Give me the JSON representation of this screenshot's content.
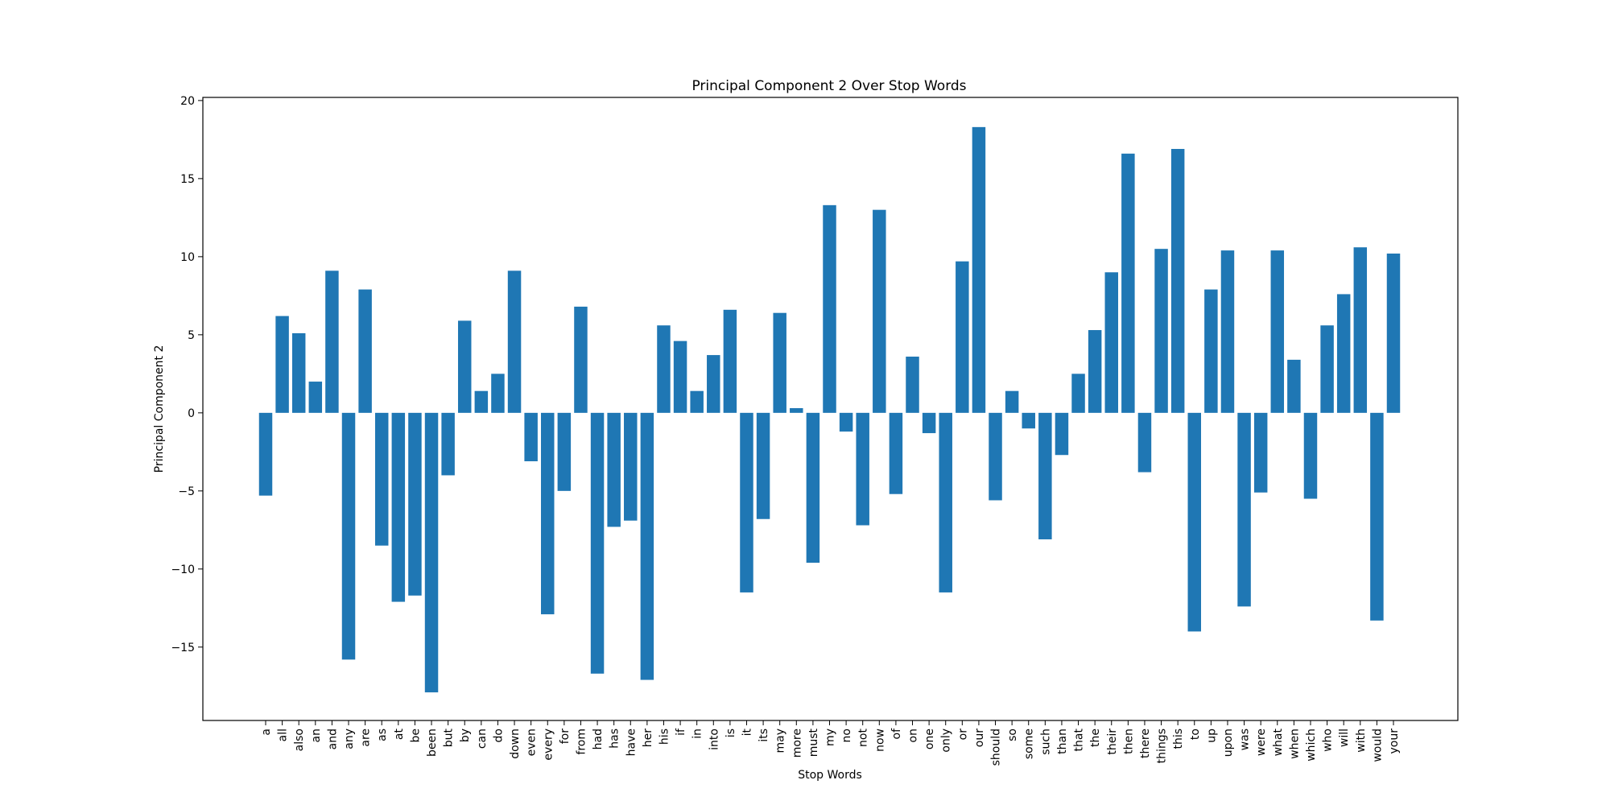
{
  "chart_data": {
    "type": "bar",
    "title": "Principal Component 2 Over Stop Words",
    "xlabel": "Stop Words",
    "ylabel": "Principal Component 2",
    "ylim": [
      -19.7,
      20.2
    ],
    "yticks": [
      -15,
      -10,
      -5,
      0,
      5,
      10,
      15,
      20
    ],
    "ytick_labels": [
      "−15",
      "−10",
      "−5",
      "0",
      "5",
      "10",
      "15",
      "20"
    ],
    "grid": false,
    "bar_color": "#1f77b4",
    "categories": [
      "a",
      "all",
      "also",
      "an",
      "and",
      "any",
      "are",
      "as",
      "at",
      "be",
      "been",
      "but",
      "by",
      "can",
      "do",
      "down",
      "even",
      "every",
      "for",
      "from",
      "had",
      "has",
      "have",
      "her",
      "his",
      "if",
      "in",
      "into",
      "is",
      "it",
      "its",
      "may",
      "more",
      "must",
      "my",
      "no",
      "not",
      "now",
      "of",
      "on",
      "one",
      "only",
      "or",
      "our",
      "should",
      "so",
      "some",
      "such",
      "than",
      "that",
      "the",
      "their",
      "then",
      "there",
      "things",
      "this",
      "to",
      "up",
      "upon",
      "was",
      "were",
      "what",
      "when",
      "which",
      "who",
      "will",
      "with",
      "would",
      "your"
    ],
    "values": [
      -5.3,
      6.2,
      5.1,
      2.0,
      9.1,
      -15.8,
      7.9,
      -8.5,
      -12.1,
      -11.7,
      -17.9,
      -4.0,
      5.9,
      1.4,
      2.5,
      9.1,
      -3.1,
      -12.9,
      -5.0,
      6.8,
      -16.7,
      -7.3,
      -6.9,
      -17.1,
      5.6,
      4.6,
      1.4,
      3.7,
      6.6,
      -11.5,
      -6.8,
      6.4,
      0.3,
      -9.6,
      13.3,
      -1.2,
      -7.2,
      13.0,
      -5.2,
      3.6,
      -1.3,
      -11.5,
      9.7,
      18.3,
      -5.6,
      1.4,
      -1.0,
      -8.1,
      -2.7,
      2.5,
      5.3,
      9.0,
      16.6,
      -3.8,
      10.5,
      16.9,
      -14.0,
      7.9,
      10.4,
      -12.4,
      -5.1,
      10.4,
      3.4,
      -5.5,
      5.6,
      7.6,
      10.6,
      -13.3,
      10.2
    ]
  }
}
